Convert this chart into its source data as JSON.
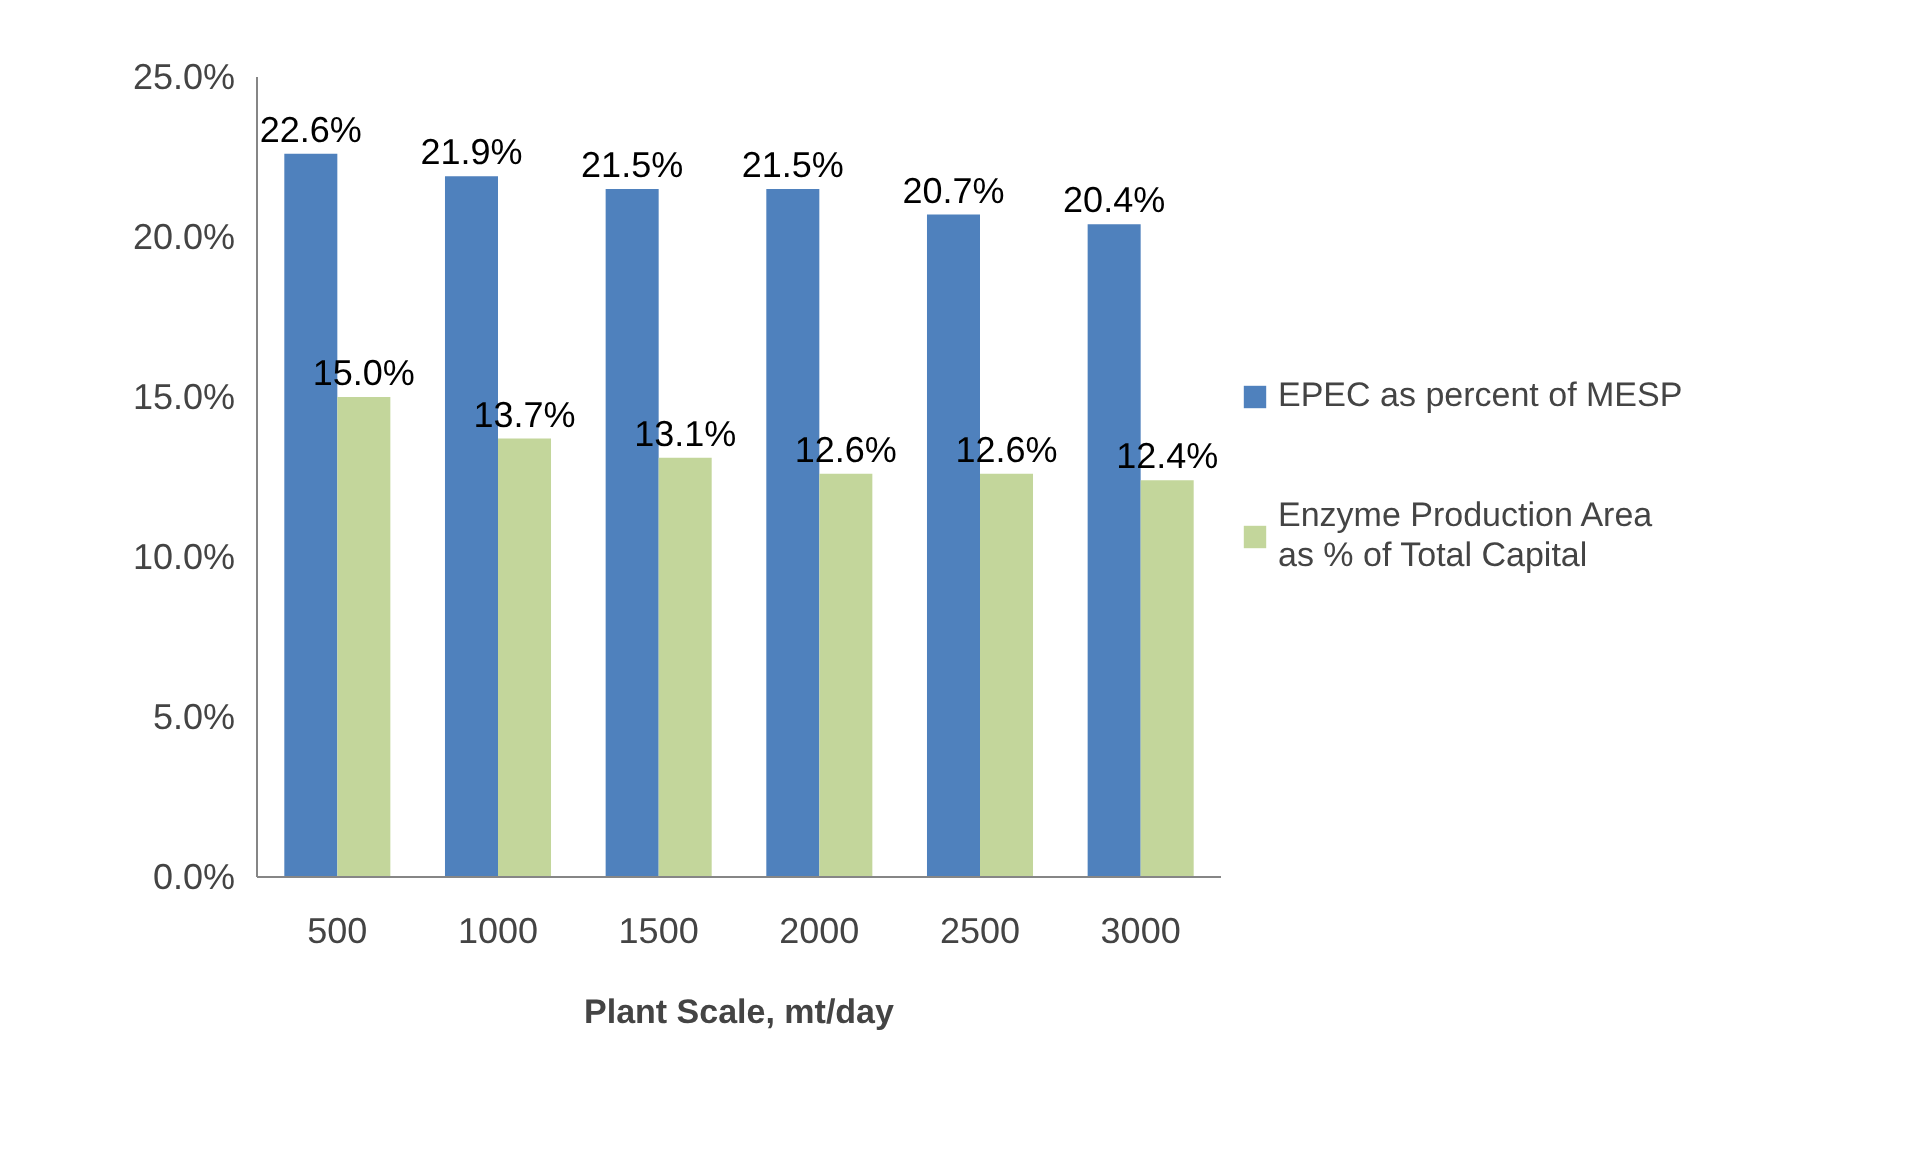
{
  "chart_data": {
    "type": "bar",
    "xlabel": "Plant Scale, mt/day",
    "categories": [
      "500",
      "1000",
      "1500",
      "2000",
      "2500",
      "3000"
    ],
    "series": [
      {
        "name": "EPEC as percent of MESP",
        "color": "#4f81bd",
        "values": [
          22.6,
          21.9,
          21.5,
          21.5,
          20.7,
          20.4
        ],
        "value_labels": [
          "22.6%",
          "21.9%",
          "21.5%",
          "21.5%",
          "20.7%",
          "20.4%"
        ]
      },
      {
        "name": "Enzyme Production Area as % of Total Capital",
        "color": "#c3d69b",
        "values": [
          15.0,
          13.7,
          13.1,
          12.6,
          12.6,
          12.4
        ],
        "value_labels": [
          "15.0%",
          "13.7%",
          "13.1%",
          "12.6%",
          "12.6%",
          "12.4%"
        ]
      }
    ],
    "ylim": [
      0,
      25
    ],
    "yticks": [
      {
        "value": 0,
        "label": "0.0%"
      },
      {
        "value": 5,
        "label": "5.0%"
      },
      {
        "value": 10,
        "label": "10.0%"
      },
      {
        "value": 15,
        "label": "15.0%"
      },
      {
        "value": 20,
        "label": "20.0%"
      },
      {
        "value": 25,
        "label": "25.0%"
      }
    ],
    "grid": false,
    "legend": "right"
  }
}
